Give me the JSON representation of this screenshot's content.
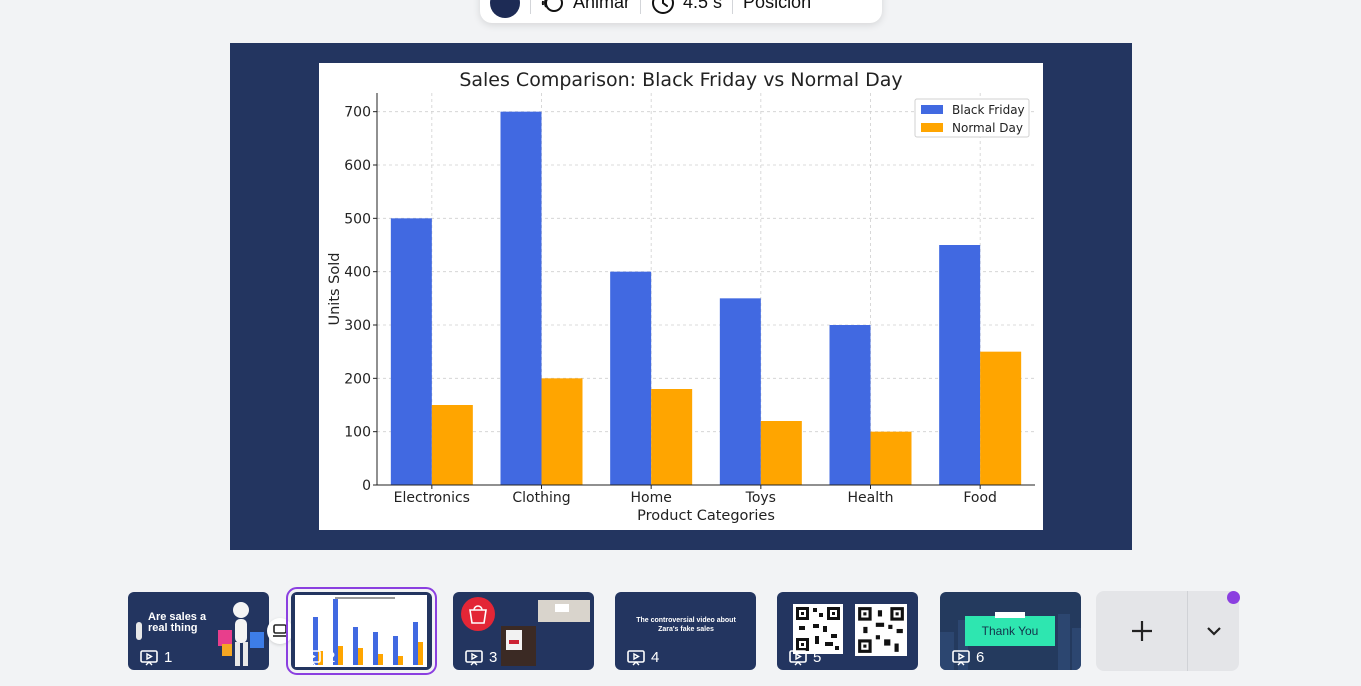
{
  "toolbar": {
    "color_swatch": "#1d2b55",
    "animate_label": "Animar",
    "duration_label": "4.5 s",
    "position_label": "Posición"
  },
  "chart_data": {
    "type": "bar",
    "title": "Sales Comparison: Black Friday vs Normal Day",
    "xlabel": "Product Categories",
    "ylabel": "Units Sold",
    "categories": [
      "Electronics",
      "Clothing",
      "Home",
      "Toys",
      "Health",
      "Food"
    ],
    "series": [
      {
        "name": "Black Friday",
        "color": "#4169e1",
        "values": [
          500,
          700,
          400,
          350,
          300,
          450
        ]
      },
      {
        "name": "Normal Day",
        "color": "#ffa500",
        "values": [
          150,
          200,
          180,
          120,
          100,
          250
        ]
      }
    ],
    "yticks": [
      0,
      100,
      200,
      300,
      400,
      500,
      600,
      700
    ],
    "ylim": [
      0,
      735
    ],
    "grid": true,
    "legend_position": "top-right"
  },
  "filmstrip": {
    "slides": [
      {
        "number": "1",
        "title": "Are sales a real thing",
        "active": false
      },
      {
        "number": "2",
        "active": true
      },
      {
        "number": "3",
        "active": false
      },
      {
        "number": "4",
        "title": "The controversial video about Zara's fake sales",
        "active": false
      },
      {
        "number": "5",
        "active": false
      },
      {
        "number": "6",
        "title": "Thank You",
        "active": false
      }
    ],
    "accent": "#8b3fe0"
  }
}
